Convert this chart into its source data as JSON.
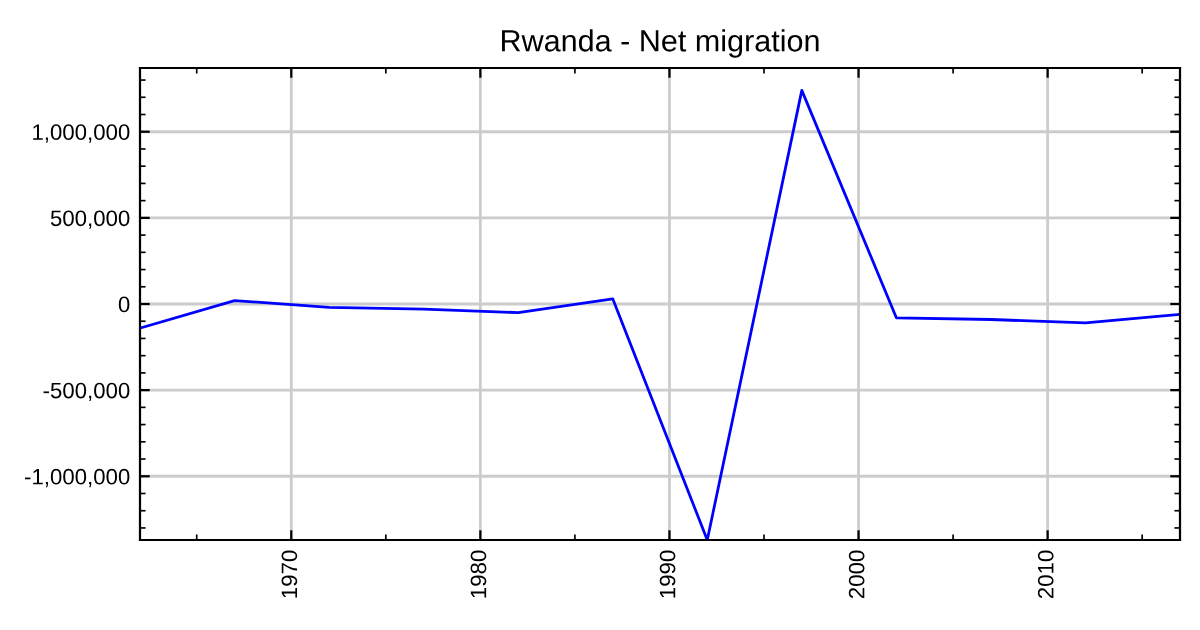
{
  "chart_data": {
    "type": "line",
    "title": "Rwanda - Net migration",
    "x": [
      1962,
      1967,
      1972,
      1977,
      1982,
      1987,
      1992,
      1997,
      2002,
      2007,
      2012,
      2017
    ],
    "series": [
      {
        "color": "#0000ff",
        "values": [
          -140000,
          20000,
          -20000,
          -30000,
          -50000,
          30000,
          -1370000,
          1240000,
          -80000,
          -90000,
          -110000,
          -60000
        ]
      }
    ],
    "xlim": [
      1962,
      2017
    ],
    "xticks": [
      1970,
      1980,
      1990,
      2000,
      2010
    ],
    "ylim": [
      -1370000,
      1370000
    ],
    "yticks": [
      {
        "value": -1000000,
        "label": "-1,000,000"
      },
      {
        "value": -500000,
        "label": "-500,000"
      },
      0,
      {
        "value": 500000,
        "label": "500,000"
      },
      {
        "value": 1000000,
        "label": "1,000,000"
      }
    ],
    "grid": true,
    "marker": "none",
    "line_style": "solid"
  }
}
